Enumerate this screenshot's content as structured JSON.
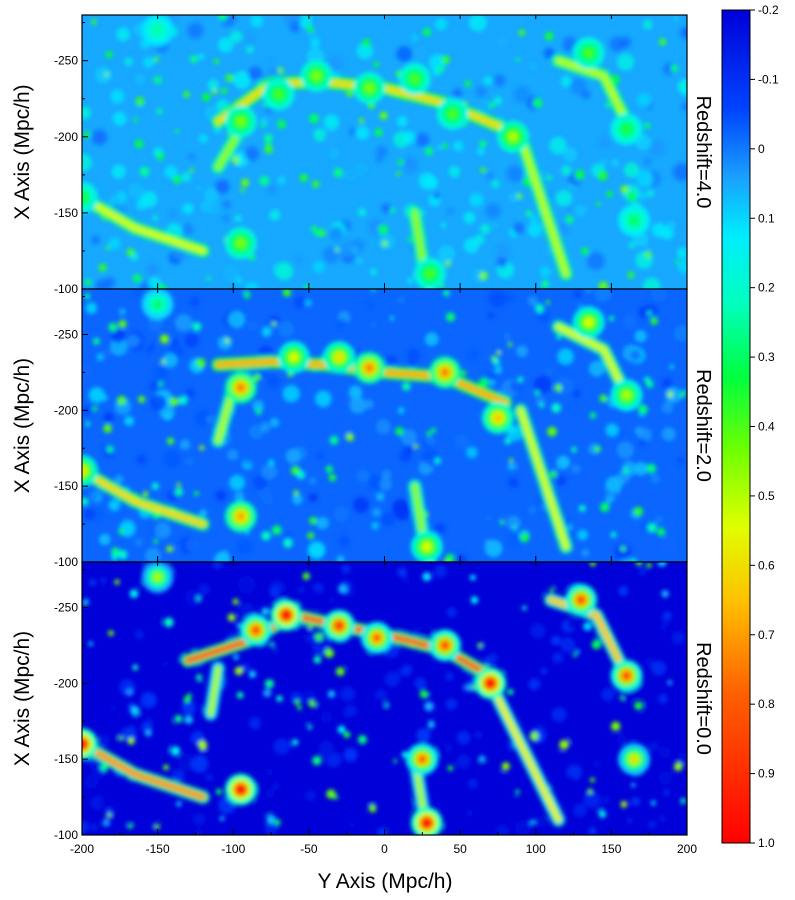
{
  "chart_data": {
    "type": "heatmap",
    "xlabel": "Y Axis (Mpc/h)",
    "ylabel": "X Axis (Mpc/h)",
    "xlim": [
      -200,
      200
    ],
    "ylim": [
      -100,
      -280
    ],
    "x_ticks": [
      -200,
      -150,
      -100,
      -50,
      0,
      50,
      100,
      150,
      200
    ],
    "x_tick_labels": [
      "-200",
      "-150",
      "-100",
      "-50",
      "0",
      "50",
      "100",
      "150",
      "200"
    ],
    "y_ticks": [
      -250,
      -200,
      -150,
      -100
    ],
    "y_tick_labels": [
      "-250",
      "-200",
      "-150",
      "-100"
    ],
    "colorbar": {
      "min": -0.2,
      "max": 1.0,
      "ticks": [
        -0.2,
        -0.1,
        0,
        0.1,
        0.2,
        0.3,
        0.4,
        0.5,
        0.6,
        0.7,
        0.8,
        0.9,
        1.0
      ],
      "tick_labels": [
        "-0.2",
        "-0.1",
        "0",
        "0.1",
        "0.2",
        "0.3",
        "0.4",
        "0.5",
        "0.6",
        "0.7",
        "0.8",
        "0.9",
        "1.0"
      ],
      "colormap": "jet-reversed (blue low, red high)"
    },
    "panels": [
      {
        "label": "Redshift=4.0",
        "background_level": 0.05,
        "peak_gain": 0.35,
        "filaments": [
          {
            "points": [
              [
                -200,
                -160
              ],
              [
                -165,
                -140
              ],
              [
                -120,
                -125
              ]
            ],
            "strength": 0.2
          },
          {
            "points": [
              [
                -110,
                -210
              ],
              [
                -75,
                -235
              ],
              [
                -40,
                -236
              ],
              [
                0,
                -232
              ],
              [
                40,
                -222
              ],
              [
                80,
                -205
              ]
            ],
            "strength": 0.25
          },
          {
            "points": [
              [
                -95,
                -205
              ],
              [
                -110,
                -180
              ]
            ],
            "strength": 0.15
          },
          {
            "points": [
              [
                90,
                -200
              ],
              [
                100,
                -170
              ],
              [
                110,
                -140
              ],
              [
                120,
                -110
              ]
            ],
            "strength": 0.18
          },
          {
            "points": [
              [
                115,
                -250
              ],
              [
                145,
                -240
              ],
              [
                160,
                -210
              ]
            ],
            "strength": 0.18
          },
          {
            "points": [
              [
                20,
                -150
              ],
              [
                25,
                -120
              ],
              [
                30,
                -100
              ]
            ],
            "strength": 0.15
          }
        ],
        "clumps": [
          {
            "x": -95,
            "y": -210,
            "v": 0.45
          },
          {
            "x": -70,
            "y": -228,
            "v": 0.4
          },
          {
            "x": -45,
            "y": -240,
            "v": 0.45
          },
          {
            "x": -10,
            "y": -232,
            "v": 0.45
          },
          {
            "x": 20,
            "y": -238,
            "v": 0.4
          },
          {
            "x": 45,
            "y": -215,
            "v": 0.4
          },
          {
            "x": 85,
            "y": -200,
            "v": 0.5
          },
          {
            "x": 135,
            "y": -255,
            "v": 0.4
          },
          {
            "x": -200,
            "y": -160,
            "v": 0.35
          },
          {
            "x": -95,
            "y": -130,
            "v": 0.45
          },
          {
            "x": 30,
            "y": -110,
            "v": 0.4
          },
          {
            "x": 160,
            "y": -205,
            "v": 0.35
          },
          {
            "x": -150,
            "y": -270,
            "v": 0.25
          },
          {
            "x": 165,
            "y": -145,
            "v": 0.3
          }
        ]
      },
      {
        "label": "Redshift=2.0",
        "background_level": -0.02,
        "peak_gain": 0.55,
        "filaments": [
          {
            "points": [
              [
                -200,
                -160
              ],
              [
                -165,
                -140
              ],
              [
                -120,
                -125
              ]
            ],
            "strength": 0.3
          },
          {
            "points": [
              [
                -110,
                -230
              ],
              [
                -75,
                -232
              ],
              [
                -40,
                -230
              ],
              [
                0,
                -225
              ],
              [
                40,
                -222
              ],
              [
                80,
                -205
              ]
            ],
            "strength": 0.35
          },
          {
            "points": [
              [
                -100,
                -215
              ],
              [
                -110,
                -180
              ]
            ],
            "strength": 0.22
          },
          {
            "points": [
              [
                90,
                -200
              ],
              [
                100,
                -170
              ],
              [
                110,
                -140
              ],
              [
                120,
                -110
              ]
            ],
            "strength": 0.25
          },
          {
            "points": [
              [
                115,
                -255
              ],
              [
                145,
                -240
              ],
              [
                160,
                -210
              ]
            ],
            "strength": 0.25
          },
          {
            "points": [
              [
                20,
                -150
              ],
              [
                25,
                -120
              ],
              [
                30,
                -100
              ]
            ],
            "strength": 0.2
          }
        ],
        "clumps": [
          {
            "x": -95,
            "y": -215,
            "v": 0.75
          },
          {
            "x": -60,
            "y": -235,
            "v": 0.55
          },
          {
            "x": -30,
            "y": -235,
            "v": 0.6
          },
          {
            "x": -10,
            "y": -228,
            "v": 0.75
          },
          {
            "x": 40,
            "y": -225,
            "v": 0.75
          },
          {
            "x": 75,
            "y": -195,
            "v": 0.65
          },
          {
            "x": 135,
            "y": -258,
            "v": 0.55
          },
          {
            "x": -200,
            "y": -160,
            "v": 0.6
          },
          {
            "x": -95,
            "y": -130,
            "v": 0.7
          },
          {
            "x": 28,
            "y": -110,
            "v": 0.55
          },
          {
            "x": 160,
            "y": -210,
            "v": 0.5
          },
          {
            "x": -150,
            "y": -270,
            "v": 0.3
          }
        ]
      },
      {
        "label": "Redshift=0.0",
        "background_level": -0.2,
        "peak_gain": 0.9,
        "filaments": [
          {
            "points": [
              [
                -200,
                -160
              ],
              [
                -165,
                -140
              ],
              [
                -120,
                -125
              ]
            ],
            "strength": 0.5
          },
          {
            "points": [
              [
                -130,
                -215
              ],
              [
                -90,
                -228
              ],
              [
                -60,
                -245
              ],
              [
                -30,
                -238
              ],
              [
                0,
                -232
              ],
              [
                40,
                -222
              ],
              [
                70,
                -205
              ]
            ],
            "strength": 0.55
          },
          {
            "points": [
              [
                -110,
                -210
              ],
              [
                -115,
                -180
              ]
            ],
            "strength": 0.35
          },
          {
            "points": [
              [
                70,
                -200
              ],
              [
                85,
                -170
              ],
              [
                100,
                -140
              ],
              [
                115,
                -110
              ]
            ],
            "strength": 0.4
          },
          {
            "points": [
              [
                110,
                -255
              ],
              [
                140,
                -245
              ],
              [
                160,
                -205
              ]
            ],
            "strength": 0.45
          },
          {
            "points": [
              [
                20,
                -150
              ],
              [
                25,
                -120
              ],
              [
                28,
                -100
              ]
            ],
            "strength": 0.35
          }
        ],
        "clumps": [
          {
            "x": -65,
            "y": -245,
            "v": 1.0
          },
          {
            "x": -85,
            "y": -235,
            "v": 0.85
          },
          {
            "x": -30,
            "y": -238,
            "v": 0.9
          },
          {
            "x": -5,
            "y": -230,
            "v": 0.8
          },
          {
            "x": 40,
            "y": -225,
            "v": 0.85
          },
          {
            "x": 70,
            "y": -200,
            "v": 1.0
          },
          {
            "x": 130,
            "y": -255,
            "v": 0.85
          },
          {
            "x": 160,
            "y": -205,
            "v": 0.85
          },
          {
            "x": -200,
            "y": -160,
            "v": 1.0
          },
          {
            "x": -95,
            "y": -130,
            "v": 1.0
          },
          {
            "x": 28,
            "y": -108,
            "v": 1.0
          },
          {
            "x": 25,
            "y": -150,
            "v": 0.8
          },
          {
            "x": -150,
            "y": -270,
            "v": 0.5
          },
          {
            "x": 165,
            "y": -150,
            "v": 0.6
          }
        ]
      }
    ]
  }
}
